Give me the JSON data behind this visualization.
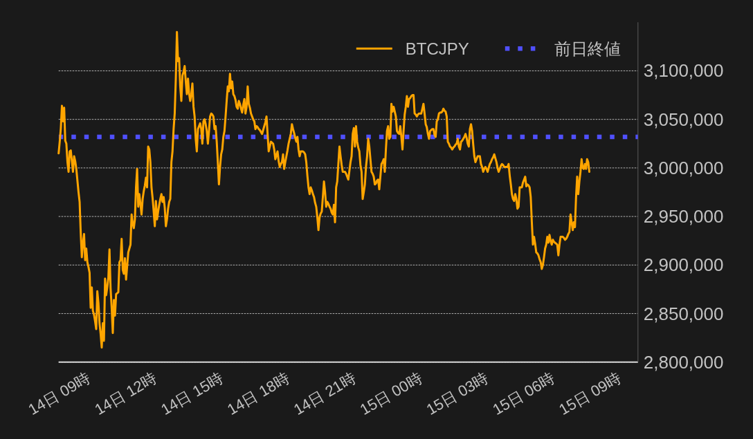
{
  "chart_data": {
    "type": "line",
    "categories": [
      null,
      null,
      null,
      null,
      null,
      null,
      null,
      null,
      null,
      null,
      null,
      null,
      null,
      null,
      null,
      null,
      null,
      null,
      null,
      null,
      null,
      null,
      null,
      null,
      null,
      null,
      null,
      null,
      "14日 09時",
      null,
      null,
      null,
      null,
      null,
      null,
      null,
      null,
      null,
      null,
      null,
      null,
      null,
      null,
      null,
      null,
      null,
      null,
      null,
      null,
      null,
      null,
      null,
      null,
      null,
      null,
      null,
      null,
      null,
      null,
      null,
      null,
      null,
      null,
      null,
      null,
      null,
      null,
      null,
      null,
      null,
      null,
      null,
      null,
      null,
      null,
      null,
      null,
      null,
      null,
      null,
      null,
      null,
      null,
      null,
      null,
      null,
      null,
      null,
      "14日 12時",
      null,
      null,
      null,
      null,
      null,
      null,
      null,
      null,
      null,
      null,
      null,
      null,
      null,
      null,
      null,
      null,
      null,
      null,
      null,
      null,
      null,
      null,
      null,
      null,
      null,
      null,
      null,
      null,
      null,
      null,
      null,
      null,
      null,
      null,
      null,
      null,
      null,
      null,
      null,
      null,
      null,
      null,
      null,
      null,
      null,
      null,
      null,
      null,
      null,
      null,
      null,
      null,
      null,
      null,
      null,
      null,
      null,
      null,
      null,
      "14日 15時",
      null,
      null,
      null,
      null,
      null,
      null,
      null,
      null,
      null,
      null,
      null,
      null,
      null,
      null,
      null,
      null,
      null,
      null,
      null,
      null,
      null,
      null,
      null,
      null,
      null,
      null,
      null,
      null,
      null,
      null,
      null,
      null,
      null,
      null,
      null,
      null,
      null,
      null,
      null,
      null,
      null,
      null,
      null,
      null,
      null,
      null,
      null,
      null,
      null,
      null,
      null,
      null,
      null,
      null,
      null,
      null,
      null,
      null,
      null,
      "14日 18時",
      null,
      null,
      null,
      null,
      null,
      null,
      null,
      null,
      null,
      null,
      null,
      null,
      null,
      null,
      null,
      null,
      null,
      null,
      null,
      null,
      null,
      null,
      null,
      null,
      null,
      null,
      null,
      null,
      null,
      null,
      null,
      null,
      null,
      null,
      null,
      null,
      null,
      null,
      null,
      null,
      null,
      null,
      null,
      null,
      null,
      null,
      null,
      null,
      null,
      null,
      null,
      null,
      null,
      null,
      null,
      null,
      null,
      null,
      null,
      "14日 21時",
      null,
      null,
      null,
      null,
      null,
      null,
      null,
      null,
      null,
      null,
      null,
      null,
      null,
      null,
      null,
      null,
      null,
      null,
      null,
      null,
      null,
      null,
      null,
      null,
      null,
      null,
      null,
      null,
      null,
      null,
      null,
      null,
      null,
      null,
      null,
      null,
      null,
      null,
      null,
      null,
      null,
      null,
      null,
      null,
      null,
      null,
      null,
      null,
      null,
      null,
      null,
      null,
      null,
      null,
      null,
      null,
      null,
      null,
      null,
      "15日 00時",
      null,
      null,
      null,
      null,
      null,
      null,
      null,
      null,
      null,
      null,
      null,
      null,
      null,
      null,
      null,
      null,
      null,
      null,
      null,
      null,
      null,
      null,
      null,
      null,
      null,
      null,
      null,
      null,
      null,
      null,
      null,
      null,
      null,
      null,
      null,
      null,
      null,
      null,
      null,
      null,
      null,
      null,
      null,
      null,
      null,
      null,
      null,
      null,
      null,
      null,
      null,
      null,
      null,
      null,
      null,
      null,
      null,
      null,
      null,
      "15日 03時",
      null,
      null,
      null,
      null,
      null,
      null,
      null,
      null,
      null,
      null,
      null,
      null,
      null,
      null,
      null,
      null,
      null,
      null,
      null,
      null,
      null,
      null,
      null,
      null,
      null,
      null,
      null,
      null,
      null,
      null,
      null,
      null,
      null,
      null,
      null,
      null,
      null,
      null,
      null,
      null,
      null,
      null,
      null,
      null,
      null,
      null,
      null,
      null,
      null,
      null,
      null,
      null,
      null,
      null,
      null,
      null,
      null,
      null,
      null,
      "15日 06時",
      null,
      null,
      null,
      null,
      null,
      null,
      null,
      null,
      null,
      null,
      null,
      null,
      null,
      null,
      null,
      null,
      null,
      null,
      null,
      null,
      null,
      null,
      null,
      null,
      null,
      null,
      null,
      null,
      null,
      null,
      null,
      null,
      null,
      null,
      null,
      null,
      null,
      null,
      null,
      null,
      null,
      null,
      null,
      null,
      null,
      null,
      null,
      null,
      null,
      null,
      null,
      null,
      null,
      null,
      null,
      null,
      null,
      null,
      null,
      "15日 09時",
      null,
      null,
      null,
      null,
      null,
      null,
      null,
      null,
      null,
      null,
      null,
      null,
      null,
      null,
      null,
      null
    ],
    "series": [
      {
        "name": "BTCJPY",
        "color": "#ffa500",
        "values": [
          3015000,
          3027000,
          3041000,
          3064000,
          3048000,
          3062000,
          3028000,
          3025000,
          3006000,
          2996000,
          3017000,
          3018000,
          3007000,
          2996000,
          3012000,
          3007000,
          2999000,
          2987000,
          2975000,
          2965000,
          2933000,
          2908000,
          2923000,
          2932000,
          2905000,
          2917000,
          2903000,
          2898000,
          2892000,
          2856000,
          2877000,
          2853000,
          2849000,
          2842000,
          2834000,
          2873000,
          2861000,
          2840000,
          2829000,
          2815000,
          2840000,
          2822000,
          2886000,
          2869000,
          2877000,
          2887000,
          2916000,
          2876000,
          2856000,
          2830000,
          2864000,
          2848000,
          2870000,
          2871000,
          2872000,
          2903000,
          2905000,
          2927000,
          2895000,
          2891000,
          2907000,
          2885000,
          2899000,
          2913000,
          2917000,
          2921000,
          2952000,
          2943000,
          2938000,
          2947000,
          2980000,
          2999000,
          2960000,
          2973000,
          2963000,
          2952000,
          2968000,
          2976000,
          2982000,
          2990000,
          2980000,
          3022000,
          3019000,
          3006000,
          2980000,
          2969000,
          2955000,
          2940000,
          2966000,
          2947000,
          2955000,
          2962000,
          2968000,
          2973000,
          2965000,
          2970000,
          2959000,
          2940000,
          2947000,
          2958000,
          2965000,
          2968000,
          3006000,
          3017000,
          3040000,
          3056000,
          3092000,
          3140000,
          3110000,
          3113000,
          3084000,
          3069000,
          3095000,
          3099000,
          3105000,
          3089000,
          3076000,
          3092000,
          3077000,
          3069000,
          3076000,
          3087000,
          3063000,
          3053000,
          3030000,
          3017000,
          3040000,
          3043000,
          3046000,
          3040000,
          3025000,
          3048000,
          3050000,
          3045000,
          3038000,
          3025000,
          3038000,
          3053000,
          3056000,
          3055000,
          3053000,
          3040000,
          3043000,
          3027000,
          3006000,
          2983000,
          3001000,
          3014000,
          3019000,
          3032000,
          3038000,
          3053000,
          3069000,
          3084000,
          3079000,
          3097000,
          3082000,
          3089000,
          3076000,
          3074000,
          3070000,
          3063000,
          3061000,
          3069000,
          3066000,
          3061000,
          3057000,
          3065000,
          3071000,
          3056000,
          3063000,
          3084000,
          3066000,
          3062000,
          3056000,
          3053000,
          3050000,
          3048000,
          3040000,
          3043000,
          3042000,
          3040000,
          3039000,
          3037000,
          3035000,
          3039000,
          3043000,
          3047000,
          3053000,
          3035000,
          3017000,
          3022000,
          3027000,
          3026000,
          3025000,
          3019000,
          3009000,
          3013000,
          3017000,
          3007000,
          3001000,
          3004000,
          3006000,
          3014000,
          2999000,
          3006000,
          3012000,
          3018000,
          3025000,
          3030000,
          3035000,
          3045000,
          3040000,
          3036000,
          3031000,
          3027000,
          3032000,
          3019000,
          3012000,
          3017000,
          3017000,
          3017000,
          3016000,
          3014000,
          3006000,
          2992000,
          2980000,
          2973000,
          2980000,
          2977000,
          2973000,
          2970000,
          2964000,
          2960000,
          2949000,
          2936000,
          2949000,
          2953000,
          2955000,
          2970000,
          2986000,
          2975000,
          2960000,
          2965000,
          2963000,
          2960000,
          2958000,
          2954000,
          2952000,
          2962000,
          2944000,
          2980000,
          2986000,
          3004000,
          3022000,
          3012000,
          3003000,
          2996000,
          2996000,
          2996000,
          2994000,
          2991000,
          2988000,
          2997000,
          3006000,
          3012000,
          3035000,
          3041000,
          3022000,
          3043000,
          3027000,
          3021000,
          3017000,
          3003000,
          2996000,
          2968000,
          2975000,
          2983000,
          3001000,
          3012000,
          3030000,
          3022000,
          3009000,
          2996000,
          2994000,
          2991000,
          2983000,
          2984000,
          2987000,
          2988000,
          2978000,
          2991000,
          3004000,
          3006000,
          3009000,
          2996000,
          3019000,
          3038000,
          3043000,
          3030000,
          3032000,
          3066000,
          3058000,
          3063000,
          3058000,
          3053000,
          3038000,
          3036000,
          3035000,
          3043000,
          3032000,
          3019000,
          3038000,
          3055000,
          3063000,
          3074000,
          3063000,
          3071000,
          3072000,
          3074000,
          3075000,
          3075000,
          3056000,
          3055000,
          3053000,
          3055000,
          3056000,
          3056000,
          3056000,
          3061000,
          3066000,
          3056000,
          3045000,
          3042000,
          3035000,
          3030000,
          3038000,
          3039000,
          3040000,
          3040000,
          3034000,
          3032000,
          3048000,
          3050000,
          3056000,
          3057000,
          3057000,
          3058000,
          3061000,
          3059000,
          3058000,
          3053000,
          3027000,
          3025000,
          3022000,
          3021000,
          3019000,
          3021000,
          3022000,
          3024000,
          3025000,
          3030000,
          3022000,
          3019000,
          3027000,
          3028000,
          3030000,
          3032000,
          3035000,
          3031000,
          3025000,
          3022000,
          3040000,
          3045000,
          3038000,
          3024000,
          3012000,
          3006000,
          3009000,
          3012000,
          3012000,
          3012000,
          3004000,
          3001000,
          2996000,
          2999000,
          3001000,
          2999000,
          2996000,
          3000000,
          3004000,
          3006000,
          3009000,
          3011000,
          3014000,
          3010000,
          3006000,
          3000000,
          2996000,
          2999000,
          3002000,
          3004000,
          3003000,
          3001000,
          3001000,
          3001000,
          3001000,
          3004000,
          2992000,
          2983000,
          2973000,
          2968000,
          2966000,
          2973000,
          2968000,
          2958000,
          2960000,
          2980000,
          2980000,
          2980000,
          2985000,
          2988000,
          2991000,
          2981000,
          2983000,
          2982000,
          2980000,
          2970000,
          2944000,
          2921000,
          2929000,
          2922000,
          2913000,
          2912000,
          2910000,
          2906000,
          2903000,
          2896000,
          2900000,
          2908000,
          2917000,
          2921000,
          2929000,
          2923000,
          2931000,
          2925000,
          2921000,
          2926000,
          2924000,
          2923000,
          2922000,
          2921000,
          2910000,
          2921000,
          2929000,
          2929000,
          2929000,
          2928000,
          2926000,
          2927000,
          2929000,
          2932000,
          2934000,
          2952000,
          2944000,
          2936000,
          2944000,
          2939000,
          2970000,
          2991000,
          2973000,
          2986000,
          2996000,
          3009000,
          3000000,
          2999000,
          3004000,
          2999000,
          3009000,
          3006000,
          2996000,
          null,
          null,
          null,
          null,
          null,
          null,
          null,
          null,
          null,
          null,
          null,
          null,
          null,
          null,
          null,
          null,
          null,
          null,
          null,
          null,
          null,
          null,
          null,
          null,
          null,
          null,
          null,
          null,
          null,
          null,
          null,
          null,
          null,
          null,
          null,
          null,
          null,
          null,
          null,
          null,
          null,
          null,
          null,
          null
        ]
      }
    ],
    "ref_lines": [
      {
        "axis": "y",
        "value": 3032000,
        "label": "前日終値",
        "color": "#5050ff",
        "line_style": "dotted"
      }
    ],
    "ylim": [
      2800000,
      3150000
    ],
    "yticks": [
      {
        "value": 2800000,
        "label": "2,800,000"
      },
      {
        "value": 2850000,
        "label": "2,850,000"
      },
      {
        "value": 2900000,
        "label": "2,900,000"
      },
      {
        "value": 2950000,
        "label": "2,950,000"
      },
      {
        "value": 3000000,
        "label": "3,000,000"
      },
      {
        "value": 3050000,
        "label": "3,050,000"
      },
      {
        "value": 3100000,
        "label": "3,100,000"
      }
    ],
    "grid": "y",
    "legend": "top right"
  }
}
